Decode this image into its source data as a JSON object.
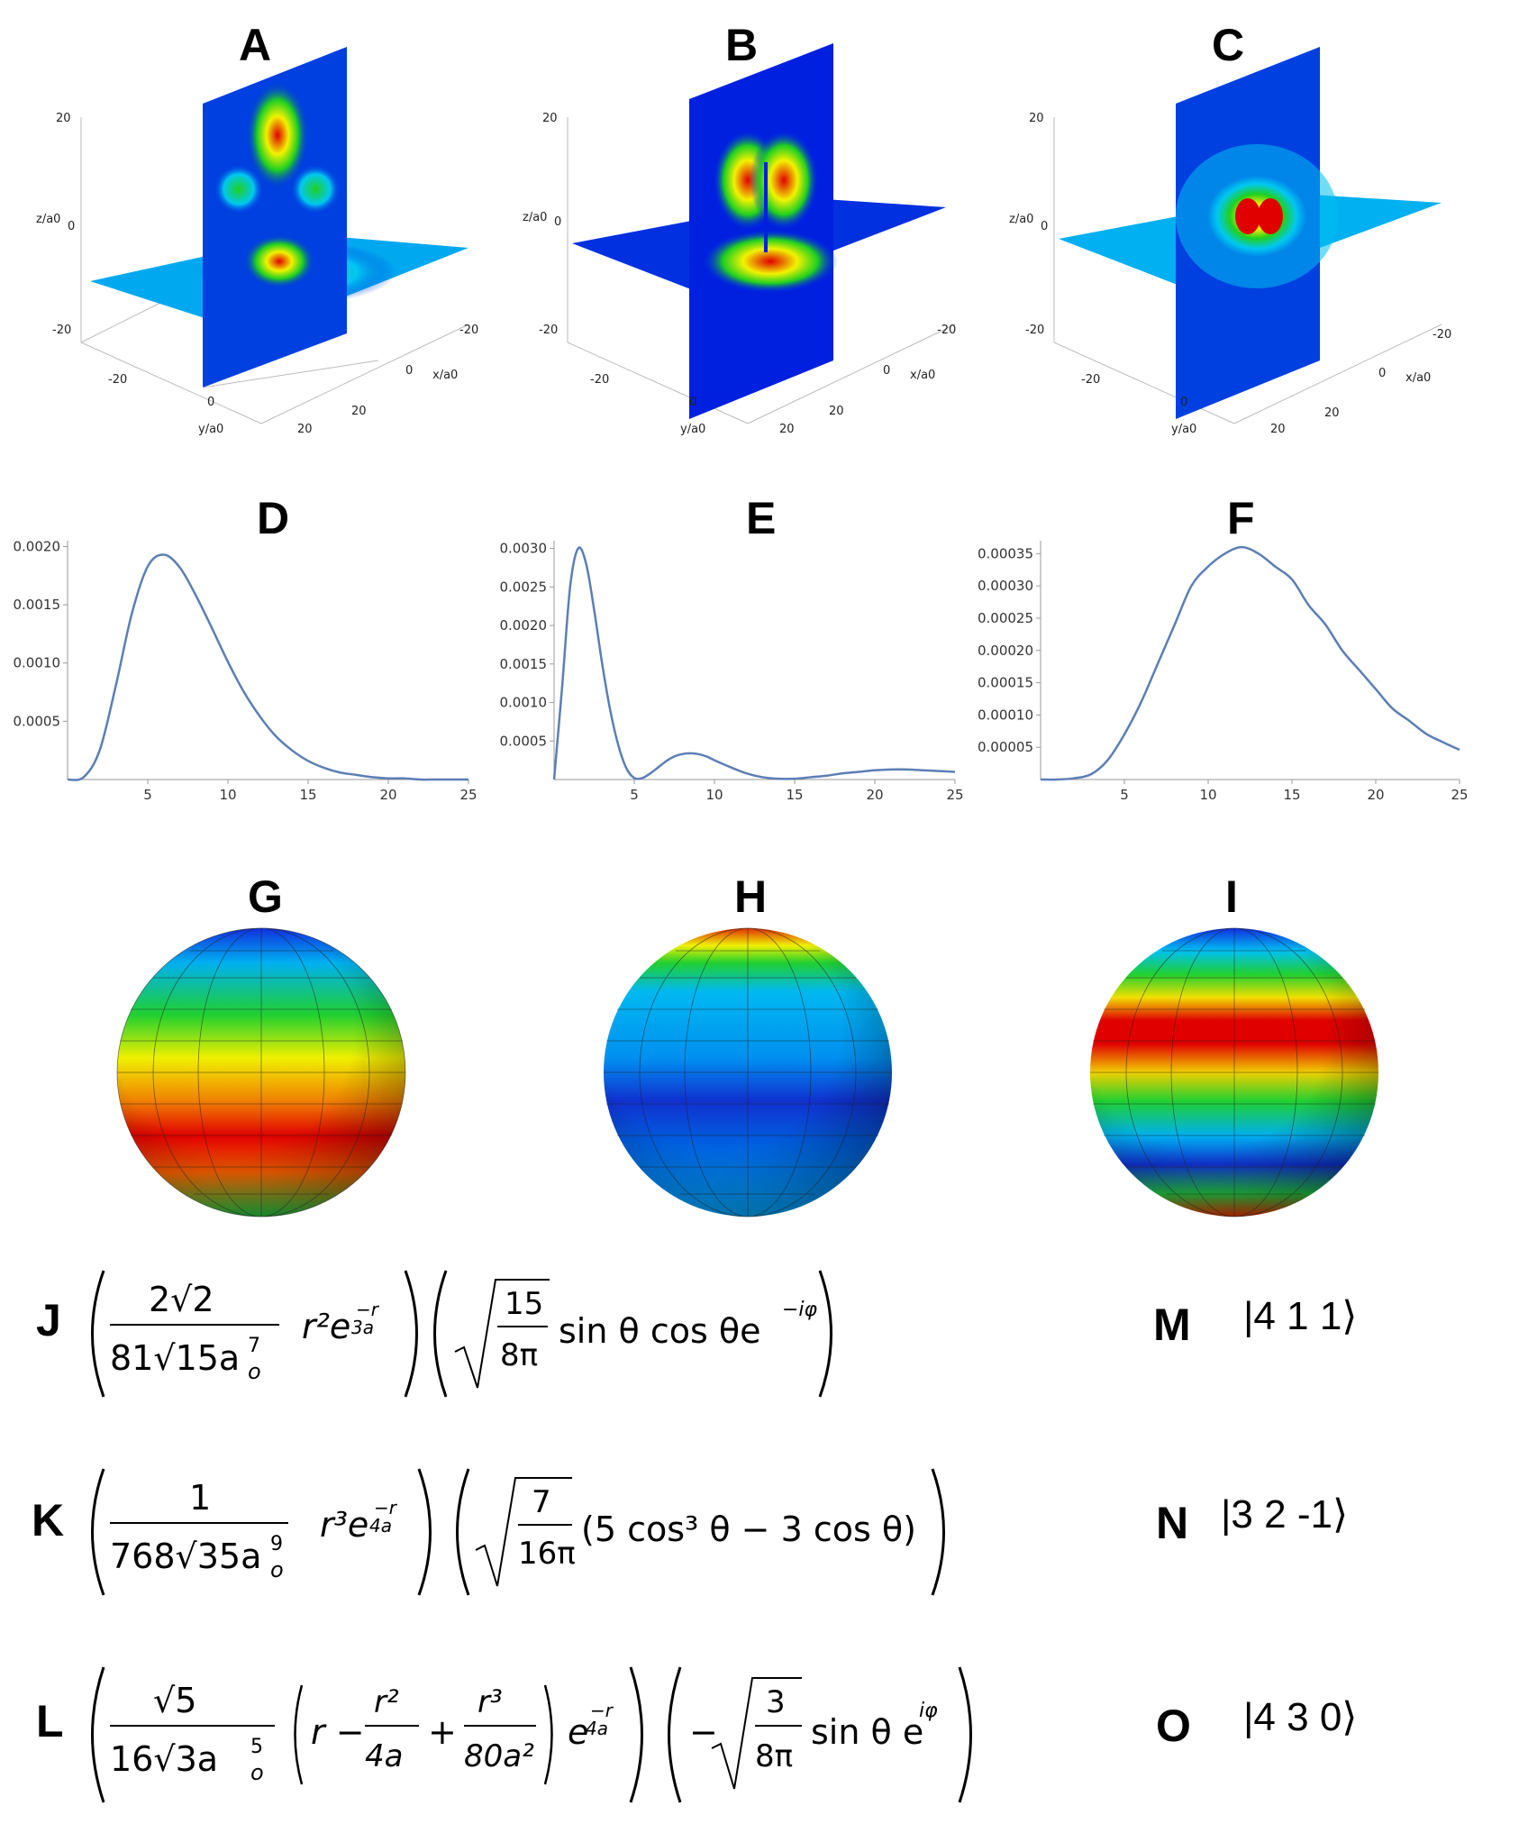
{
  "panels": {
    "A": "A",
    "B": "B",
    "C": "C",
    "D": "D",
    "E": "E",
    "F": "F",
    "G": "G",
    "H": "H",
    "I": "I",
    "J": "J",
    "K": "K",
    "L": "L",
    "M": "M",
    "N": "N",
    "O": "O"
  },
  "slice_axes": {
    "z_label": "z/a0",
    "x_label": "x/a0",
    "y_label": "y/a0",
    "z_ticks": [
      "20",
      "0",
      "-20"
    ],
    "x_ticks": [
      "-20",
      "0",
      "20"
    ],
    "y_ticks": [
      "-20",
      "0",
      "20"
    ]
  },
  "chart_data": [
    {
      "panel": "D",
      "type": "line",
      "x": [
        0,
        1,
        2,
        3,
        4,
        5,
        6,
        7,
        8,
        9,
        10,
        11,
        12,
        13,
        14,
        15,
        16,
        17,
        18,
        19,
        20,
        21,
        22,
        23,
        24,
        25
      ],
      "y": [
        0,
        2e-05,
        0.00025,
        0.0008,
        0.00142,
        0.00183,
        0.00193,
        0.00182,
        0.00158,
        0.0013,
        0.00101,
        0.00075,
        0.00054,
        0.00037,
        0.00025,
        0.00016,
        0.0001,
        6e-05,
        4e-05,
        2e-05,
        1e-05,
        1e-05,
        0,
        0,
        0,
        0
      ],
      "xticks": [
        "5",
        "10",
        "15",
        "20",
        "25"
      ],
      "xtick_values": [
        5,
        10,
        15,
        20,
        25
      ],
      "yticks": [
        "0.0005",
        "0.0010",
        "0.0015",
        "0.0020"
      ],
      "ytick_values": [
        0.0005,
        0.001,
        0.0015,
        0.002
      ],
      "xlim": [
        0,
        25
      ],
      "ylim": [
        0,
        0.00205
      ],
      "color": "#5b7fb5"
    },
    {
      "panel": "E",
      "type": "line",
      "x": [
        0,
        0.5,
        1,
        1.5,
        2,
        2.5,
        3,
        3.5,
        4,
        4.5,
        5,
        5.5,
        6,
        6.5,
        7,
        7.5,
        8,
        8.5,
        9,
        9.5,
        10,
        11,
        12,
        13,
        14,
        15,
        16,
        17,
        18,
        19,
        20,
        21,
        22,
        23,
        24,
        25
      ],
      "y": [
        0,
        0.0012,
        0.0025,
        0.003,
        0.0028,
        0.0022,
        0.0015,
        0.0009,
        0.00045,
        0.00015,
        2e-05,
        2e-05,
        8e-05,
        0.00016,
        0.00024,
        0.0003,
        0.00033,
        0.00034,
        0.00033,
        0.0003,
        0.00025,
        0.00016,
        8e-05,
        3e-05,
        1e-05,
        1e-05,
        3e-05,
        5e-05,
        8e-05,
        0.0001,
        0.00012,
        0.00013,
        0.00013,
        0.00012,
        0.00011,
        0.0001
      ],
      "xticks": [
        "5",
        "10",
        "15",
        "20",
        "25"
      ],
      "xtick_values": [
        5,
        10,
        15,
        20,
        25
      ],
      "yticks": [
        "0.0005",
        "0.0010",
        "0.0015",
        "0.0020",
        "0.0025",
        "0.0030"
      ],
      "ytick_values": [
        0.0005,
        0.001,
        0.0015,
        0.002,
        0.0025,
        0.003
      ],
      "xlim": [
        0,
        25
      ],
      "ylim": [
        0,
        0.0031
      ],
      "color": "#5b7fb5"
    },
    {
      "panel": "F",
      "type": "line",
      "x": [
        0,
        1,
        2,
        3,
        4,
        5,
        6,
        7,
        8,
        9,
        10,
        11,
        12,
        13,
        14,
        15,
        16,
        17,
        18,
        19,
        20,
        21,
        22,
        23,
        24,
        25
      ],
      "y": [
        0,
        0,
        2e-06,
        8e-06,
        3e-05,
        7e-05,
        0.00012,
        0.00018,
        0.00024,
        0.0003,
        0.00033,
        0.00035,
        0.00036,
        0.00035,
        0.00033,
        0.00031,
        0.00027,
        0.00024,
        0.0002,
        0.00017,
        0.00014,
        0.00011,
        9.1e-05,
        7.1e-05,
        5.8e-05,
        4.6e-05
      ],
      "xticks": [
        "5",
        "10",
        "15",
        "20",
        "25"
      ],
      "xtick_values": [
        5,
        10,
        15,
        20,
        25
      ],
      "yticks": [
        "0.00005",
        "0.00010",
        "0.00015",
        "0.00020",
        "0.00025",
        "0.00030",
        "0.00035"
      ],
      "ytick_values": [
        5e-05,
        0.0001,
        0.00015,
        0.0002,
        0.00025,
        0.0003,
        0.00035
      ],
      "xlim": [
        0,
        25
      ],
      "ylim": [
        0,
        0.00037
      ],
      "color": "#5b7fb5"
    }
  ],
  "kets": {
    "M": "|4 1 1⟩",
    "N": "|3 2 -1⟩",
    "O": "|4 3 0⟩"
  },
  "colors": {
    "red": "#e00000",
    "yellow": "#f2f200",
    "green": "#20d020",
    "cyan": "#00c8f0",
    "blue": "#0010e0",
    "curve": "#5b7fb5"
  }
}
